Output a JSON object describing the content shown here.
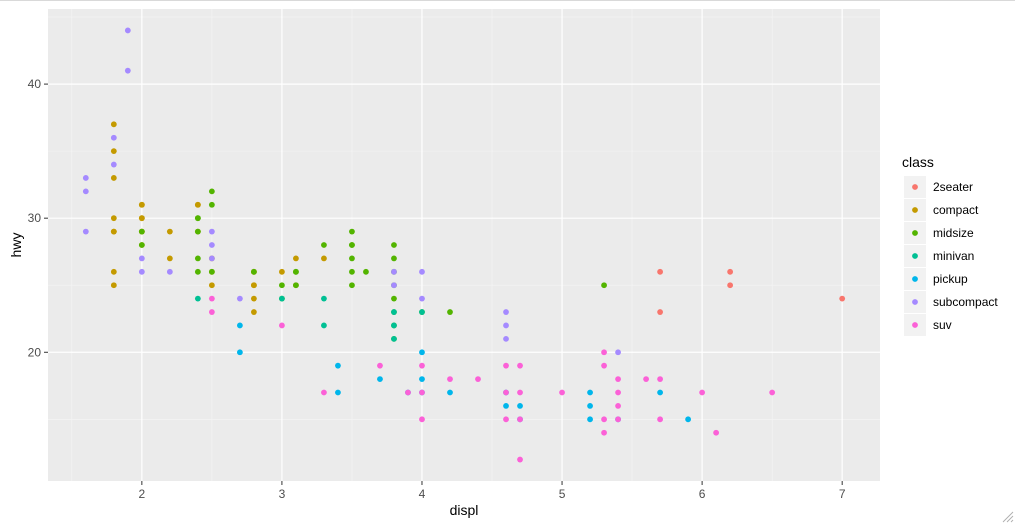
{
  "chart_data": {
    "type": "scatter",
    "xlabel": "displ",
    "ylabel": "hwy",
    "xlim": [
      1.33,
      7.27
    ],
    "ylim": [
      10.4,
      45.6
    ],
    "x_ticks": [
      2,
      3,
      4,
      5,
      6,
      7
    ],
    "y_ticks": [
      20,
      30,
      40
    ],
    "grid": true,
    "legend_position": "right",
    "legend_title": "class",
    "series": [
      {
        "name": "2seater",
        "color": "#F8766D",
        "points": [
          [
            5.7,
            26
          ],
          [
            5.7,
            23
          ],
          [
            6.2,
            26
          ],
          [
            6.2,
            25
          ],
          [
            7.0,
            24
          ]
        ]
      },
      {
        "name": "compact",
        "color": "#C49A00",
        "points": [
          [
            1.8,
            29
          ],
          [
            1.8,
            29
          ],
          [
            2.0,
            31
          ],
          [
            2.0,
            30
          ],
          [
            2.8,
            26
          ],
          [
            2.8,
            26
          ],
          [
            3.1,
            27
          ],
          [
            1.8,
            26
          ],
          [
            1.8,
            25
          ],
          [
            2.0,
            28
          ],
          [
            2.0,
            29
          ],
          [
            2.8,
            25
          ],
          [
            2.8,
            25
          ],
          [
            3.1,
            25
          ],
          [
            1.8,
            37
          ],
          [
            1.8,
            35
          ],
          [
            1.8,
            33
          ],
          [
            2.0,
            30
          ],
          [
            2.2,
            29
          ],
          [
            2.2,
            27
          ],
          [
            2.4,
            31
          ],
          [
            2.4,
            31
          ],
          [
            2.4,
            29
          ],
          [
            2.5,
            27
          ],
          [
            2.5,
            25
          ],
          [
            2.8,
            24
          ],
          [
            2.8,
            23
          ],
          [
            3.3,
            27
          ],
          [
            3.0,
            26
          ],
          [
            1.8,
            30
          ],
          [
            2.0,
            31
          ],
          [
            2.0,
            29
          ],
          [
            2.5,
            26
          ]
        ]
      },
      {
        "name": "midsize",
        "color": "#53B400",
        "points": [
          [
            2.4,
            30
          ],
          [
            2.4,
            27
          ],
          [
            2.5,
            26
          ],
          [
            2.5,
            32
          ],
          [
            2.5,
            31
          ],
          [
            2.8,
            26
          ],
          [
            3.0,
            25
          ],
          [
            3.1,
            26
          ],
          [
            3.5,
            27
          ],
          [
            3.5,
            26
          ],
          [
            3.5,
            25
          ],
          [
            3.5,
            29
          ],
          [
            3.8,
            26
          ],
          [
            3.8,
            27
          ],
          [
            3.8,
            28
          ],
          [
            3.8,
            24
          ],
          [
            3.3,
            28
          ],
          [
            3.6,
            26
          ],
          [
            2.0,
            28
          ],
          [
            2.4,
            26
          ],
          [
            3.0,
            24
          ],
          [
            3.1,
            25
          ],
          [
            3.5,
            28
          ],
          [
            3.8,
            22
          ],
          [
            3.8,
            23
          ],
          [
            3.8,
            21
          ],
          [
            4.0,
            23
          ],
          [
            4.2,
            23
          ],
          [
            5.3,
            25
          ],
          [
            3.8,
            25
          ],
          [
            2.0,
            29
          ],
          [
            2.4,
            29
          ],
          [
            2.4,
            30
          ],
          [
            3.5,
            28
          ],
          [
            3.1,
            26
          ]
        ]
      },
      {
        "name": "minivan",
        "color": "#00C094",
        "points": [
          [
            2.4,
            24
          ],
          [
            3.0,
            24
          ],
          [
            3.3,
            22
          ],
          [
            3.3,
            24
          ],
          [
            3.8,
            22
          ],
          [
            3.8,
            23
          ],
          [
            4.0,
            23
          ],
          [
            3.8,
            21
          ]
        ]
      },
      {
        "name": "pickup",
        "color": "#00B6EB",
        "points": [
          [
            2.7,
            22
          ],
          [
            2.7,
            20
          ],
          [
            3.4,
            19
          ],
          [
            3.4,
            17
          ],
          [
            3.7,
            18
          ],
          [
            3.9,
            17
          ],
          [
            4.0,
            20
          ],
          [
            4.0,
            18
          ],
          [
            4.0,
            17
          ],
          [
            4.2,
            17
          ],
          [
            4.6,
            17
          ],
          [
            4.6,
            16
          ],
          [
            4.7,
            16
          ],
          [
            4.7,
            15
          ],
          [
            5.2,
            17
          ],
          [
            5.2,
            16
          ],
          [
            5.2,
            15
          ],
          [
            5.4,
            15
          ],
          [
            5.7,
            17
          ],
          [
            5.9,
            15
          ]
        ]
      },
      {
        "name": "subcompact",
        "color": "#A58AFF",
        "points": [
          [
            1.6,
            33
          ],
          [
            1.6,
            32
          ],
          [
            1.6,
            29
          ],
          [
            1.8,
            36
          ],
          [
            1.8,
            34
          ],
          [
            1.9,
            44
          ],
          [
            1.9,
            41
          ],
          [
            2.0,
            27
          ],
          [
            2.0,
            26
          ],
          [
            2.2,
            26
          ],
          [
            2.5,
            28
          ],
          [
            2.5,
            29
          ],
          [
            2.5,
            27
          ],
          [
            2.7,
            24
          ],
          [
            3.8,
            25
          ],
          [
            3.8,
            26
          ],
          [
            4.0,
            26
          ],
          [
            4.0,
            24
          ],
          [
            4.6,
            23
          ],
          [
            4.6,
            22
          ],
          [
            4.6,
            21
          ],
          [
            5.4,
            20
          ]
        ]
      },
      {
        "name": "suv",
        "color": "#FB61D7",
        "points": [
          [
            2.5,
            24
          ],
          [
            2.5,
            23
          ],
          [
            3.0,
            22
          ],
          [
            3.3,
            17
          ],
          [
            3.7,
            19
          ],
          [
            3.9,
            17
          ],
          [
            4.0,
            19
          ],
          [
            4.0,
            17
          ],
          [
            4.0,
            15
          ],
          [
            4.2,
            18
          ],
          [
            4.4,
            18
          ],
          [
            4.6,
            19
          ],
          [
            4.6,
            17
          ],
          [
            4.6,
            15
          ],
          [
            4.7,
            19
          ],
          [
            4.7,
            17
          ],
          [
            4.7,
            15
          ],
          [
            4.7,
            12
          ],
          [
            5.0,
            17
          ],
          [
            5.3,
            20
          ],
          [
            5.3,
            19
          ],
          [
            5.3,
            15
          ],
          [
            5.3,
            14
          ],
          [
            5.4,
            18
          ],
          [
            5.4,
            17
          ],
          [
            5.4,
            16
          ],
          [
            5.4,
            15
          ],
          [
            5.6,
            18
          ],
          [
            5.7,
            18
          ],
          [
            5.7,
            15
          ],
          [
            6.0,
            17
          ],
          [
            6.1,
            14
          ],
          [
            6.5,
            17
          ]
        ]
      }
    ]
  }
}
